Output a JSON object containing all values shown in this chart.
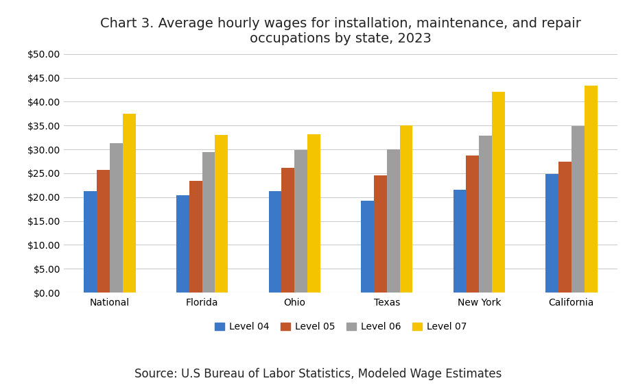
{
  "title": "Chart 3. Average hourly wages for installation, maintenance, and repair\noccupations by state, 2023",
  "source": "Source: U.S Bureau of Labor Statistics, Modeled Wage Estimates",
  "categories": [
    "National",
    "Florida",
    "Ohio",
    "Texas",
    "New York",
    "California"
  ],
  "levels": [
    "Level 04",
    "Level 05",
    "Level 06",
    "Level 07"
  ],
  "values": {
    "Level 04": [
      21.3,
      20.4,
      21.3,
      19.3,
      21.5,
      24.8
    ],
    "Level 05": [
      25.65,
      23.45,
      26.1,
      24.55,
      28.75,
      27.4
    ],
    "Level 06": [
      31.3,
      29.5,
      29.8,
      30.0,
      32.9,
      34.9
    ],
    "Level 07": [
      37.5,
      33.0,
      33.2,
      35.0,
      42.0,
      43.4
    ]
  },
  "colors": {
    "Level 04": "#3c78c8",
    "Level 05": "#c0562a",
    "Level 06": "#9e9e9e",
    "Level 07": "#f5c400"
  },
  "ylim": [
    0,
    50
  ],
  "yticks": [
    0,
    5,
    10,
    15,
    20,
    25,
    30,
    35,
    40,
    45,
    50
  ],
  "background_color": "#ffffff",
  "title_fontsize": 14,
  "tick_fontsize": 10,
  "legend_fontsize": 10,
  "source_fontsize": 12
}
